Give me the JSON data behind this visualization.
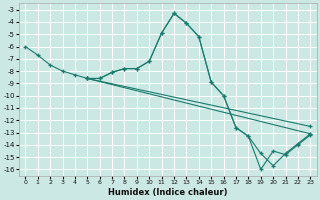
{
  "xlabel": "Humidex (Indice chaleur)",
  "bg_color": "#cce8e4",
  "line_color": "#1a7a6e",
  "grid_color": "#ffffff",
  "xlim": [
    -0.5,
    23.5
  ],
  "ylim": [
    -16.5,
    -2.5
  ],
  "xticks": [
    0,
    1,
    2,
    3,
    4,
    5,
    6,
    7,
    8,
    9,
    10,
    11,
    12,
    13,
    14,
    15,
    16,
    17,
    18,
    19,
    20,
    21,
    22,
    23
  ],
  "yticks": [
    -3,
    -4,
    -5,
    -6,
    -7,
    -8,
    -9,
    -10,
    -11,
    -12,
    -13,
    -14,
    -15,
    -16
  ],
  "series": [
    {
      "x": [
        0,
        1,
        2,
        3,
        4,
        5,
        6,
        7,
        8,
        9,
        10,
        11,
        12,
        13,
        14,
        15,
        16,
        17,
        18,
        19,
        20,
        21,
        22,
        23
      ],
      "y": [
        -6.0,
        -6.7,
        -7.5,
        -8.0,
        -8.3,
        -8.6,
        -8.6,
        -8.1,
        -7.8,
        -7.8,
        -7.2,
        -4.9,
        -3.3,
        -4.1,
        -5.2,
        -8.9,
        -10.0,
        -12.6,
        -13.3,
        -14.7,
        -15.7,
        -14.7,
        -13.9,
        -13.1
      ]
    },
    {
      "x": [
        5,
        6,
        7,
        8,
        9,
        10,
        11,
        12,
        13,
        14,
        15,
        16,
        17,
        18,
        19,
        20,
        21,
        22,
        23
      ],
      "y": [
        -8.6,
        -8.6,
        -8.1,
        -7.8,
        -7.8,
        -7.2,
        -4.9,
        -3.3,
        -4.1,
        -5.2,
        -8.9,
        -10.0,
        -12.6,
        -13.3,
        -16.0,
        -14.5,
        -14.8,
        -14.0,
        -13.2
      ]
    },
    {
      "x": [
        5,
        23
      ],
      "y": [
        -8.6,
        -13.1
      ]
    },
    {
      "x": [
        5,
        23
      ],
      "y": [
        -8.6,
        -12.5
      ]
    }
  ]
}
